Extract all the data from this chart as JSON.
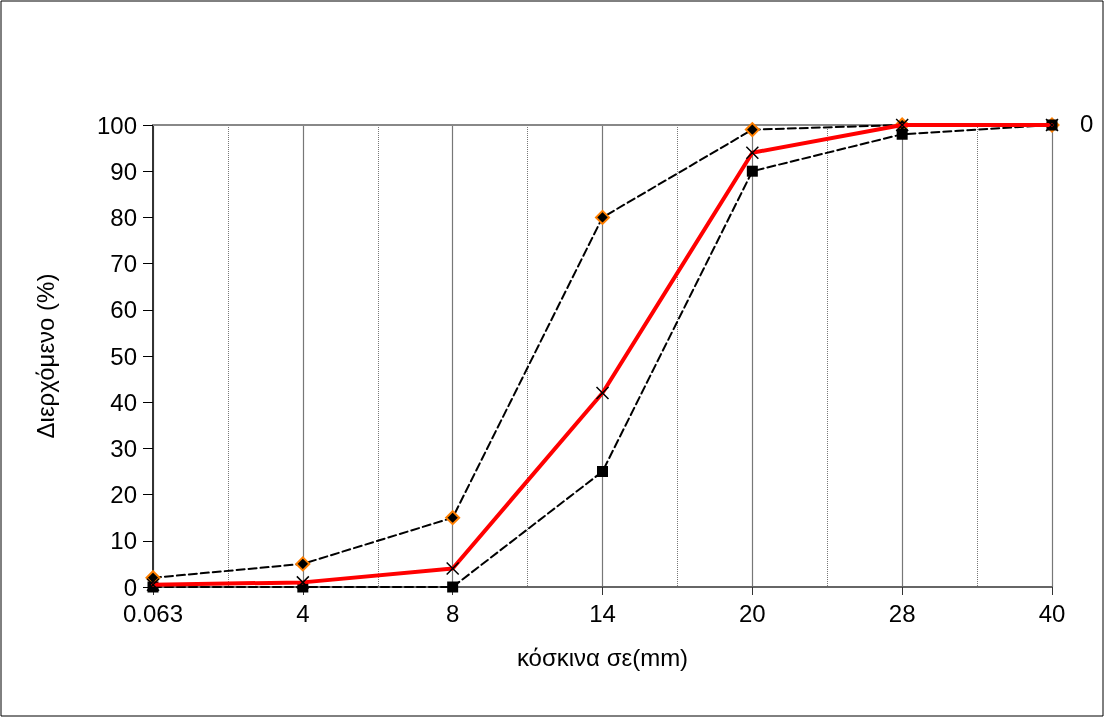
{
  "chart_data": {
    "type": "line",
    "xlabel": "κόσκινα σε(mm)",
    "ylabel": "Διερχόμενο (%)",
    "categories": [
      "0.063",
      "4",
      "8",
      "14",
      "20",
      "28",
      "40"
    ],
    "series": [
      {
        "color": "#000000",
        "marker": "diamond",
        "line_style": "dashed",
        "values": [
          2,
          5,
          15,
          80,
          99,
          100,
          100
        ]
      },
      {
        "color": "#ff0000",
        "marker": "cross",
        "line_style": "solid",
        "values": [
          0.5,
          1,
          4,
          42,
          94,
          100,
          100
        ]
      },
      {
        "color": "#000000",
        "marker": "square",
        "line_style": "dashed",
        "values": [
          0,
          0,
          0,
          25,
          90,
          98,
          100
        ]
      }
    ],
    "ylim": [
      0,
      100
    ],
    "yticks": [
      0,
      10,
      20,
      30,
      40,
      50,
      60,
      70,
      80,
      90,
      100
    ],
    "grid": "x",
    "annotations": [
      "0"
    ]
  }
}
